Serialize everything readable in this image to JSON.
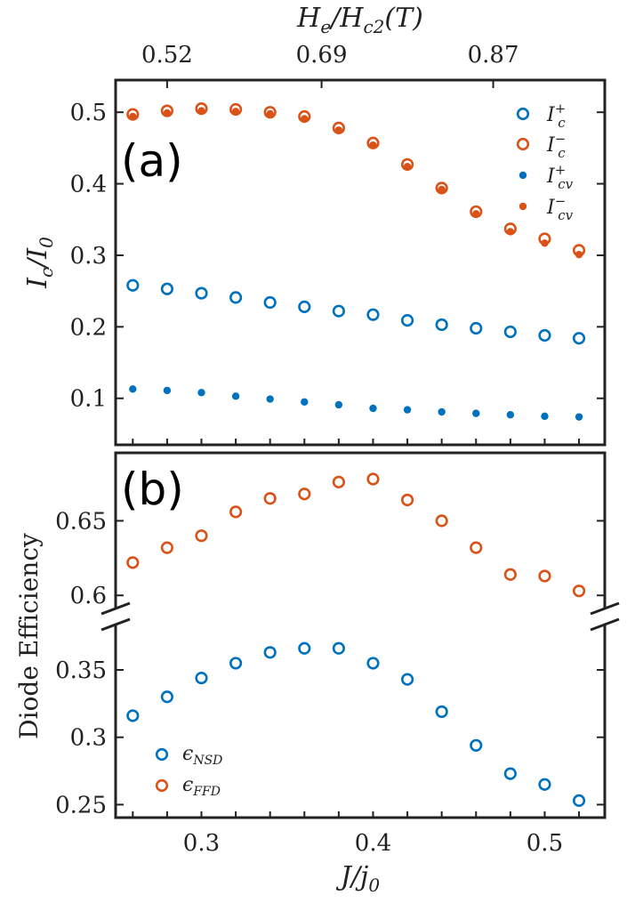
{
  "colors": {
    "blue": "#0072BD",
    "orange": "#D95319",
    "axis": "#222222"
  },
  "top_axis": {
    "title": "H_e/H_c2(T)",
    "title_parts": {
      "main": "H",
      "sub_e": "e",
      "slash": "/",
      "main2": "H",
      "sub_c2": "c2",
      "paren": "(T)"
    },
    "ticks": [
      {
        "x": 0.28,
        "label": "0.52"
      },
      {
        "x": 0.37,
        "label": "0.69"
      },
      {
        "x": 0.47,
        "label": "0.87"
      }
    ]
  },
  "chart_data": [
    {
      "type": "scatter",
      "panel_label": "(a)",
      "ylabel": "I_c/I_0",
      "ylabel_parts": {
        "main": "I",
        "sub": "c",
        "slash": "/",
        "main2": "I",
        "sub2": "0"
      },
      "xlim": [
        0.25,
        0.535
      ],
      "ylim": [
        0.035,
        0.545
      ],
      "y_ticks": [
        0.1,
        0.2,
        0.3,
        0.4,
        0.5
      ],
      "y_tick_labels": [
        "0.1",
        "0.2",
        "0.3",
        "0.4",
        "0.5"
      ],
      "x": [
        0.26,
        0.28,
        0.3,
        0.32,
        0.34,
        0.36,
        0.38,
        0.4,
        0.42,
        0.44,
        0.46,
        0.48,
        0.5,
        0.52
      ],
      "legend_position": "top-right",
      "series": [
        {
          "name": "I_c^+",
          "label_main": "I",
          "label_sub": "c",
          "label_sup": "+",
          "color": "blue",
          "marker": "open-circle",
          "values": [
            0.258,
            0.253,
            0.247,
            0.241,
            0.234,
            0.228,
            0.222,
            0.217,
            0.209,
            0.203,
            0.198,
            0.193,
            0.188,
            0.184
          ]
        },
        {
          "name": "I_c^-",
          "label_main": "I",
          "label_sub": "c",
          "label_sup": "−",
          "color": "orange",
          "marker": "open-circle",
          "values": [
            0.497,
            0.502,
            0.505,
            0.504,
            0.5,
            0.494,
            0.478,
            0.457,
            0.427,
            0.394,
            0.361,
            0.337,
            0.323,
            0.307
          ]
        },
        {
          "name": "I_cv^+",
          "label_main": "I",
          "label_sub": "cv",
          "label_sup": "+",
          "color": "blue",
          "marker": "dot",
          "values": [
            0.113,
            0.111,
            0.108,
            0.103,
            0.099,
            0.095,
            0.091,
            0.086,
            0.084,
            0.081,
            0.079,
            0.077,
            0.075,
            0.074
          ]
        },
        {
          "name": "I_cv^-",
          "label_main": "I",
          "label_sub": "cv",
          "label_sup": "−",
          "color": "orange",
          "marker": "dot",
          "values": [
            0.494,
            0.499,
            0.502,
            0.501,
            0.498,
            0.491,
            0.475,
            0.454,
            0.424,
            0.392,
            0.358,
            0.333,
            0.317,
            0.301
          ]
        }
      ]
    },
    {
      "type": "scatter",
      "panel_label": "(b)",
      "ylabel": "Diode Efficiency",
      "xlabel": "J/j_0",
      "xlabel_parts": {
        "main": "J",
        "slash": "/",
        "main2": "j",
        "sub2": "0"
      },
      "xlim": [
        0.25,
        0.535
      ],
      "x_ticks": [
        0.3,
        0.4,
        0.5
      ],
      "x_tick_labels": [
        "0.3",
        "0.4",
        "0.5"
      ],
      "broken_y_axis": true,
      "ylim_upper": [
        0.59,
        0.692
      ],
      "ylim_lower": [
        0.245,
        0.385
      ],
      "y_ticks_upper": [
        0.6,
        0.65
      ],
      "y_tick_labels_upper": [
        "0.6",
        "0.65"
      ],
      "y_ticks_lower": [
        0.25,
        0.3,
        0.35
      ],
      "y_tick_labels_lower": [
        "0.25",
        "0.3",
        "0.35"
      ],
      "x": [
        0.26,
        0.28,
        0.3,
        0.32,
        0.34,
        0.36,
        0.38,
        0.4,
        0.42,
        0.44,
        0.46,
        0.48,
        0.5,
        0.52
      ],
      "legend_position": "bottom-left",
      "series": [
        {
          "name": "ϵ_NSD",
          "label_main": "ϵ",
          "label_sub": "NSD",
          "color": "blue",
          "marker": "open-circle",
          "values": [
            0.316,
            0.33,
            0.344,
            0.355,
            0.363,
            0.366,
            0.366,
            0.355,
            0.343,
            0.319,
            0.294,
            0.273,
            0.265,
            0.253
          ]
        },
        {
          "name": "ϵ_FFD",
          "label_main": "ϵ",
          "label_sub": "FFD",
          "color": "orange",
          "marker": "open-circle",
          "values": [
            0.622,
            0.632,
            0.64,
            0.656,
            0.665,
            0.668,
            0.676,
            0.678,
            0.664,
            0.65,
            0.632,
            0.614,
            0.613,
            0.603
          ]
        }
      ]
    }
  ]
}
